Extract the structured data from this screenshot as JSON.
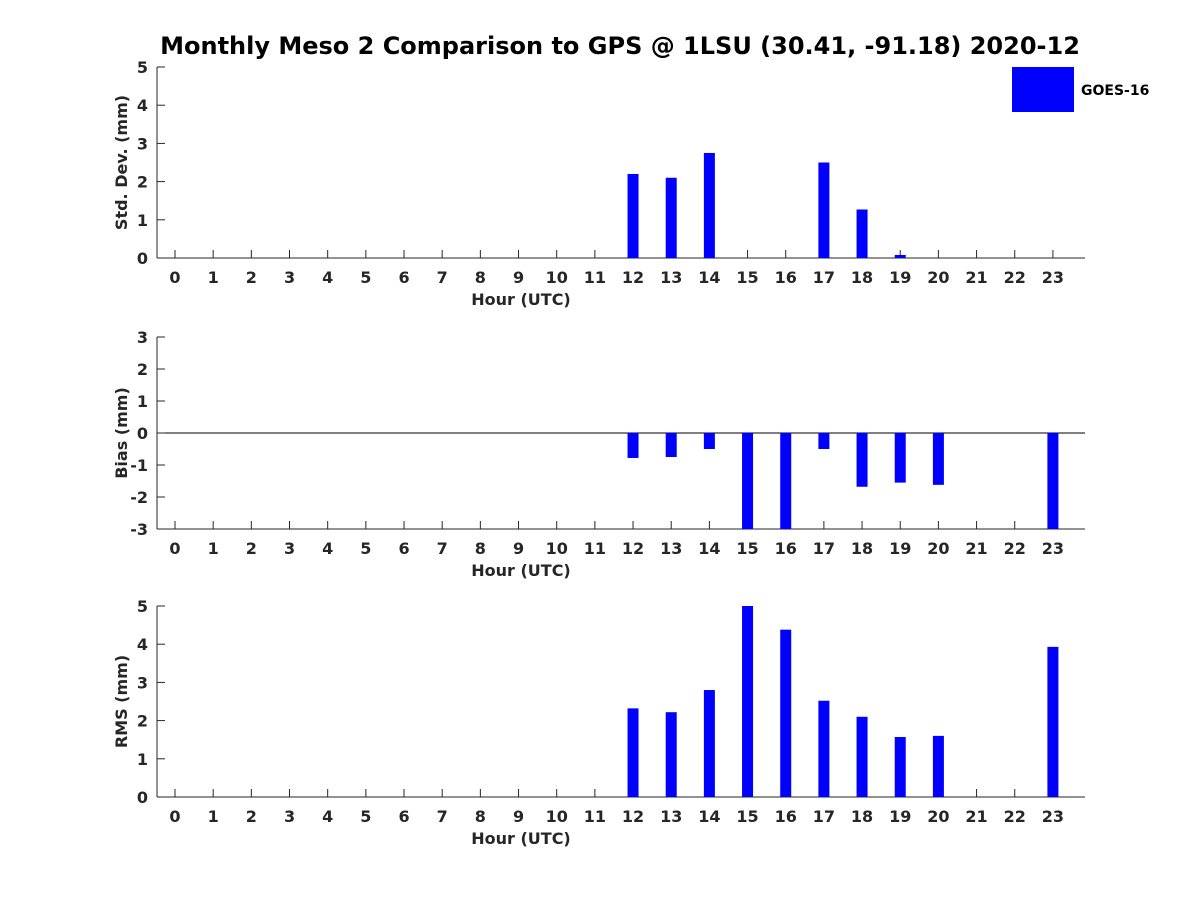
{
  "title": "Monthly Meso 2 Comparison to GPS @ 1LSU (30.41, -91.18) 2020-12",
  "legend": {
    "label": "GOES-16",
    "color": "#0000ff",
    "placement": "top-right"
  },
  "chart_data": [
    {
      "type": "bar",
      "xlabel": "Hour (UTC)",
      "ylabel": "Std. Dev. (mm)",
      "ylim": [
        0,
        5
      ],
      "yticks": [
        0,
        1,
        2,
        3,
        4,
        5
      ],
      "categories": [
        "0",
        "1",
        "2",
        "3",
        "4",
        "5",
        "6",
        "7",
        "8",
        "9",
        "10",
        "11",
        "12",
        "13",
        "14",
        "15",
        "16",
        "17",
        "18",
        "19",
        "20",
        "21",
        "22",
        "23"
      ],
      "series": [
        {
          "name": "GOES-16",
          "color": "#0000ff",
          "values": [
            null,
            null,
            null,
            null,
            null,
            null,
            null,
            null,
            null,
            null,
            null,
            null,
            2.2,
            2.1,
            2.75,
            null,
            null,
            2.5,
            1.27,
            0.08,
            null,
            null,
            null,
            null
          ]
        }
      ],
      "grid": false
    },
    {
      "type": "bar",
      "xlabel": "Hour (UTC)",
      "ylabel": "Bias (mm)",
      "ylim": [
        -3,
        3
      ],
      "yticks": [
        -3,
        -2,
        -1,
        0,
        1,
        2,
        3
      ],
      "zero_line": true,
      "categories": [
        "0",
        "1",
        "2",
        "3",
        "4",
        "5",
        "6",
        "7",
        "8",
        "9",
        "10",
        "11",
        "12",
        "13",
        "14",
        "15",
        "16",
        "17",
        "18",
        "19",
        "20",
        "21",
        "22",
        "23"
      ],
      "series": [
        {
          "name": "GOES-16",
          "color": "#0000ff",
          "values": [
            null,
            null,
            null,
            null,
            null,
            null,
            null,
            null,
            null,
            null,
            null,
            null,
            -0.78,
            -0.75,
            -0.5,
            -3.0,
            -3.0,
            -0.5,
            -1.68,
            -1.55,
            -1.62,
            null,
            null,
            -3.0
          ]
        }
      ],
      "grid": false
    },
    {
      "type": "bar",
      "xlabel": "Hour (UTC)",
      "ylabel": "RMS (mm)",
      "ylim": [
        0,
        5
      ],
      "yticks": [
        0,
        1,
        2,
        3,
        4,
        5
      ],
      "categories": [
        "0",
        "1",
        "2",
        "3",
        "4",
        "5",
        "6",
        "7",
        "8",
        "9",
        "10",
        "11",
        "12",
        "13",
        "14",
        "15",
        "16",
        "17",
        "18",
        "19",
        "20",
        "21",
        "22",
        "23"
      ],
      "series": [
        {
          "name": "GOES-16",
          "color": "#0000ff",
          "values": [
            null,
            null,
            null,
            null,
            null,
            null,
            null,
            null,
            null,
            null,
            null,
            null,
            2.32,
            2.22,
            2.8,
            5.0,
            4.38,
            2.52,
            2.1,
            1.57,
            1.6,
            null,
            null,
            3.93
          ]
        }
      ],
      "grid": false
    }
  ]
}
